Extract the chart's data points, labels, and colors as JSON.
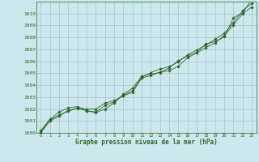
{
  "title": "Graphe pression niveau de la mer (hPa)",
  "background_color": "#cce8ec",
  "grid_color": "#9fc8cc",
  "line_color": "#2d6b2d",
  "marker_color": "#2d6b2d",
  "xlim": [
    -0.5,
    23.5
  ],
  "ylim": [
    1000,
    1011
  ],
  "xticks": [
    0,
    1,
    2,
    3,
    4,
    5,
    6,
    7,
    8,
    9,
    10,
    11,
    12,
    13,
    14,
    15,
    16,
    17,
    18,
    19,
    20,
    21,
    22,
    23
  ],
  "yticks": [
    1000,
    1001,
    1002,
    1003,
    1004,
    1005,
    1006,
    1007,
    1008,
    1009,
    1010
  ],
  "series": [
    [
      1000.1,
      1001.1,
      1001.5,
      1001.8,
      1002.1,
      1002.0,
      1002.0,
      1002.5,
      1002.7,
      1003.1,
      1003.4,
      1004.6,
      1004.8,
      1005.1,
      1005.2,
      1005.6,
      1006.3,
      1006.7,
      1007.15,
      1007.55,
      1008.15,
      1009.05,
      1010.0,
      1010.55
    ],
    [
      1000.2,
      1001.15,
      1001.75,
      1002.1,
      1002.2,
      1001.85,
      1001.75,
      1002.3,
      1002.6,
      1003.15,
      1003.55,
      1004.65,
      1005.05,
      1005.35,
      1005.55,
      1005.95,
      1006.55,
      1006.95,
      1007.35,
      1007.85,
      1008.35,
      1009.25,
      1010.25,
      1010.85
    ],
    [
      1000.0,
      1001.0,
      1001.4,
      1001.9,
      1002.05,
      1001.85,
      1001.7,
      1002.0,
      1002.5,
      1003.25,
      1003.75,
      1004.75,
      1004.95,
      1005.05,
      1005.45,
      1006.05,
      1006.45,
      1006.75,
      1007.45,
      1007.65,
      1008.05,
      1009.65,
      1010.05,
      1011.2
    ]
  ]
}
